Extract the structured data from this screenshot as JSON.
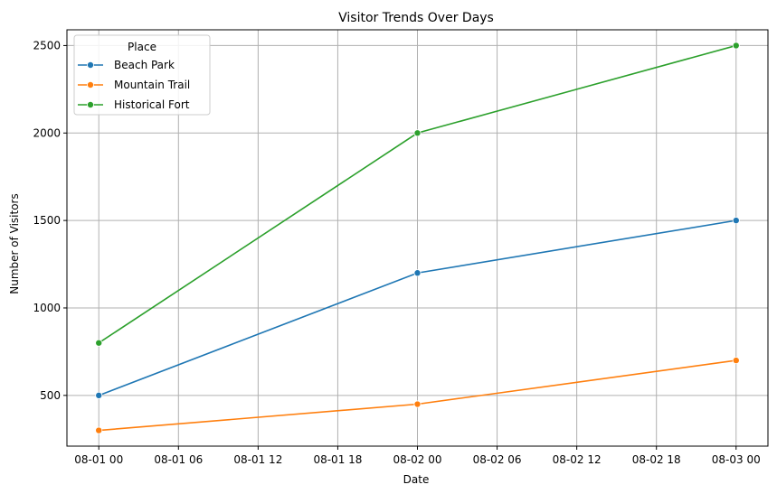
{
  "chart_data": {
    "type": "line",
    "title": "Visitor Trends Over Days",
    "xlabel": "Date",
    "ylabel": "Number of Visitors",
    "x": [
      "2023-08-01 00:00",
      "2023-08-02 00:00",
      "2023-08-03 00:00"
    ],
    "x_range": [
      "2023-08-01 00:00",
      "2023-08-03 00:00"
    ],
    "xticks": [
      "08-01 00",
      "08-01 06",
      "08-01 12",
      "08-01 18",
      "08-02 00",
      "08-02 06",
      "08-02 12",
      "08-02 18",
      "08-03 00"
    ],
    "ylim": [
      210,
      2590
    ],
    "yticks": [
      500,
      1000,
      1500,
      2000,
      2500
    ],
    "grid": true,
    "legend": {
      "title": "Place",
      "position": "top-left"
    },
    "series": [
      {
        "name": "Beach Park",
        "color": "#1f77b4",
        "values": [
          500,
          1200,
          1500
        ]
      },
      {
        "name": "Mountain Trail",
        "color": "#ff7f0e",
        "values": [
          300,
          450,
          700
        ]
      },
      {
        "name": "Historical Fort",
        "color": "#2ca02c",
        "values": [
          800,
          2000,
          2500
        ]
      }
    ]
  }
}
